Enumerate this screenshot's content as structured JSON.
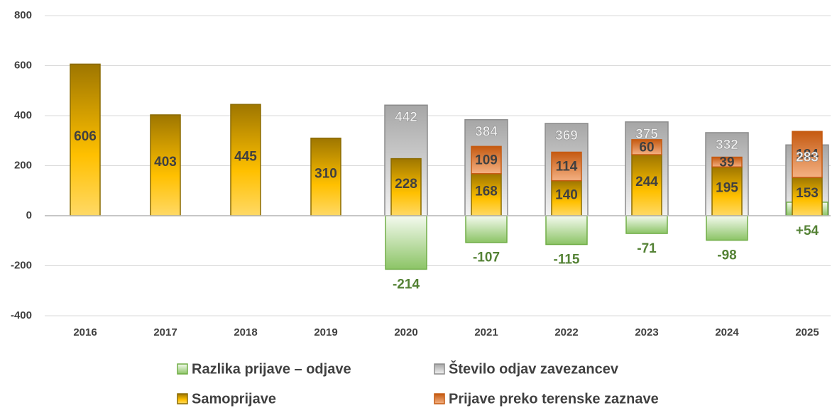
{
  "chart_data": {
    "type": "bar",
    "categories": [
      "2016",
      "2017",
      "2018",
      "2019",
      "2020",
      "2021",
      "2022",
      "2023",
      "2024",
      "2025"
    ],
    "series": [
      {
        "name": "Razlika prijave – odjave",
        "color": "#70ad47",
        "values": [
          null,
          null,
          null,
          null,
          -214,
          -107,
          -115,
          -71,
          -98,
          54
        ],
        "value_labels": [
          null,
          null,
          null,
          null,
          "-214",
          "-107",
          "-115",
          "-71",
          "-98",
          "+54"
        ]
      },
      {
        "name": "Število odjav zavezancev",
        "color": "#8c8c8c",
        "values": [
          null,
          null,
          null,
          null,
          442,
          384,
          369,
          375,
          332,
          283
        ]
      },
      {
        "name": "Samoprijave",
        "color": "#8a6a00",
        "values": [
          606,
          403,
          445,
          310,
          228,
          168,
          140,
          244,
          195,
          153
        ]
      },
      {
        "name": "Prijave preko terenske zaznave",
        "color": "#c55a11",
        "values": [
          null,
          null,
          null,
          null,
          null,
          109,
          114,
          60,
          39,
          184
        ]
      }
    ],
    "ylim": [
      -400,
      800
    ],
    "yticks": [
      -400,
      -200,
      0,
      200,
      400,
      600,
      800
    ],
    "grid": true
  }
}
